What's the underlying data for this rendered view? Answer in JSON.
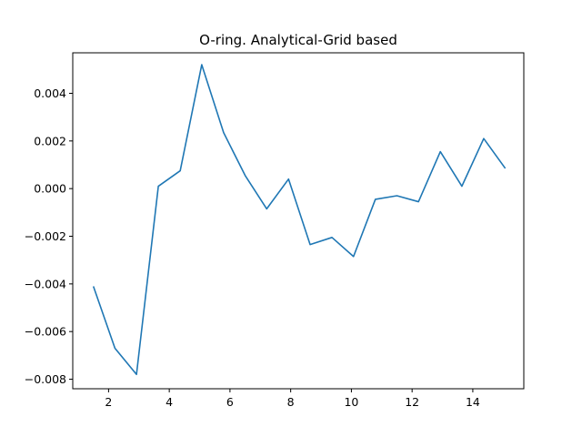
{
  "chart_data": {
    "type": "line",
    "title": "O-ring. Analytical-Grid based",
    "xlabel": "",
    "ylabel": "",
    "xlim": [
      0.82,
      15.68
    ],
    "ylim": [
      -0.0084,
      0.0057
    ],
    "xticks": [
      2,
      4,
      6,
      8,
      10,
      12,
      14
    ],
    "xtick_labels": [
      "2",
      "4",
      "6",
      "8",
      "10",
      "12",
      "14"
    ],
    "yticks": [
      -0.008,
      -0.006,
      -0.004,
      -0.002,
      0.0,
      0.002,
      0.004
    ],
    "ytick_labels": [
      "−0.008",
      "−0.006",
      "−0.004",
      "−0.002",
      "0.000",
      "0.002",
      "0.004"
    ],
    "grid": false,
    "series": [
      {
        "color": "#1f77b4",
        "x": [
          1.5,
          2.21,
          2.92,
          3.64,
          4.36,
          5.07,
          5.79,
          6.5,
          7.21,
          7.93,
          8.64,
          9.36,
          10.07,
          10.79,
          11.5,
          12.21,
          12.93,
          13.64,
          14.36,
          15.07
        ],
        "y": [
          -0.0041,
          -0.0067,
          -0.0078,
          0.0001,
          0.00075,
          0.0052,
          0.00235,
          0.00055,
          -0.00085,
          0.0004,
          -0.00235,
          -0.00205,
          -0.00285,
          -0.00045,
          -0.0003,
          -0.00055,
          0.00155,
          0.0001,
          0.0021,
          0.00085
        ]
      }
    ]
  }
}
